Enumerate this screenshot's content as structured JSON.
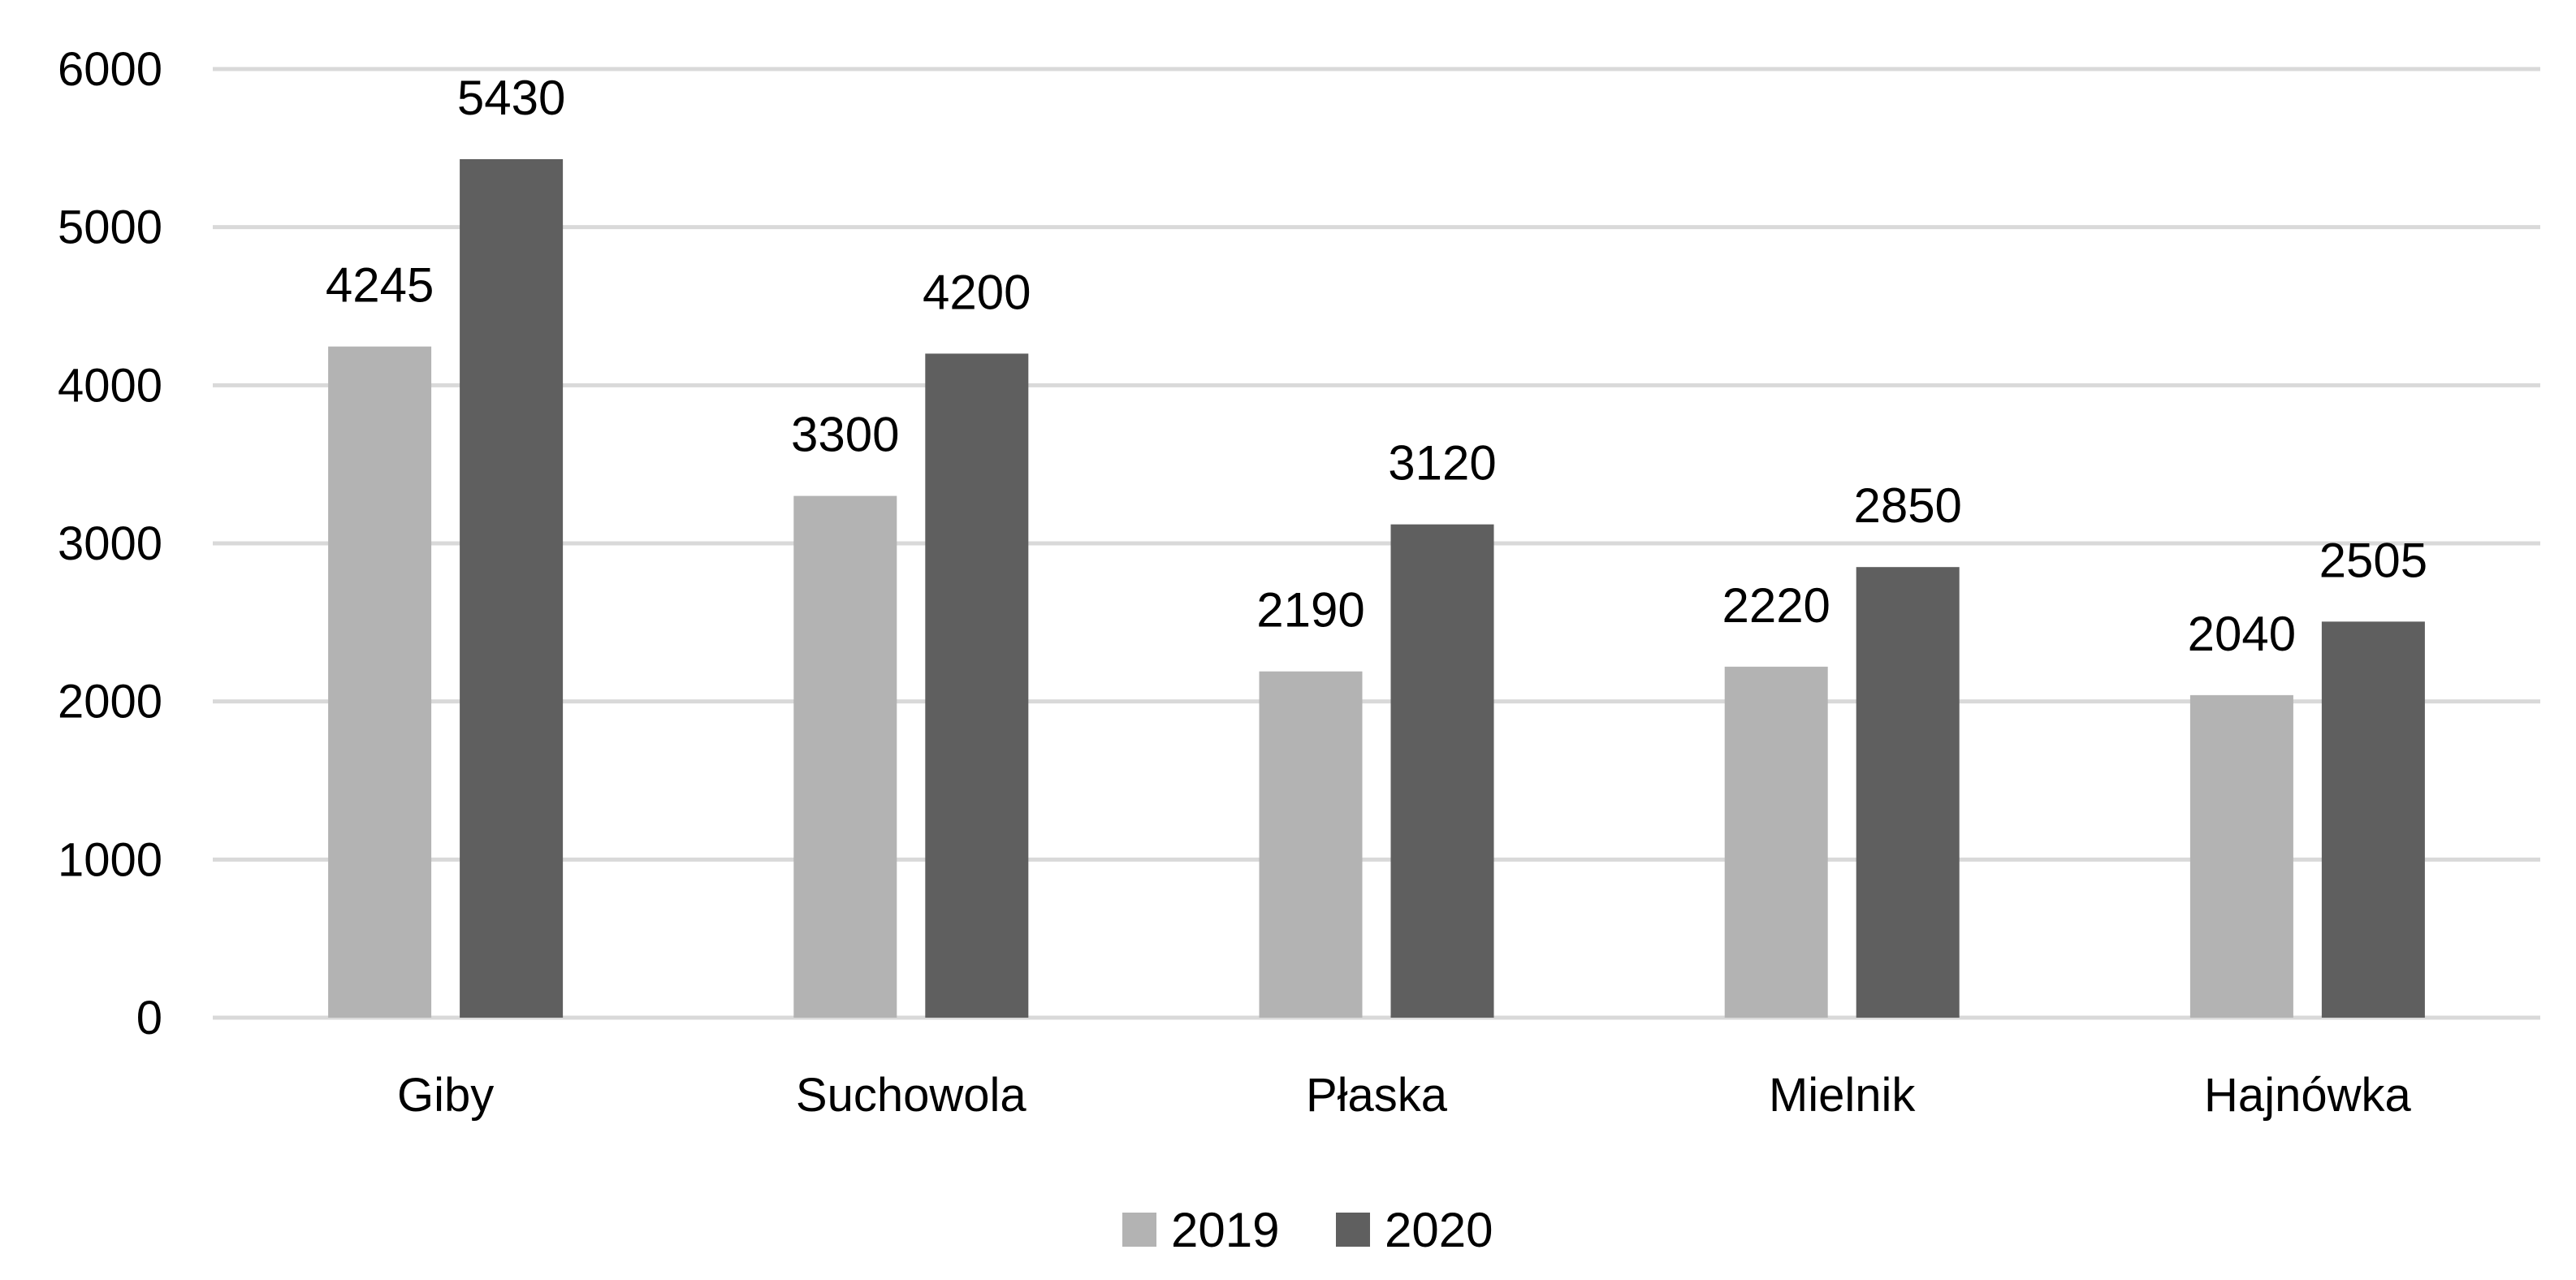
{
  "chart_data": {
    "type": "bar",
    "title": "",
    "xlabel": "",
    "ylabel": "",
    "categories": [
      "Giby",
      "Suchowola",
      "Płaska",
      "Mielnik",
      "Hajnówka"
    ],
    "series": [
      {
        "name": "2019",
        "values": [
          4245,
          3300,
          2190,
          2220,
          2040
        ],
        "color": "#b3b3b3"
      },
      {
        "name": "2020",
        "values": [
          5430,
          4200,
          3120,
          2850,
          2505
        ],
        "color": "#5f5f5f"
      }
    ],
    "ylim": [
      0,
      6000
    ],
    "yticks": [
      0,
      1000,
      2000,
      3000,
      4000,
      5000,
      6000
    ],
    "grid": true,
    "gridline_color": "#d9d9d9",
    "data_labels": true,
    "legend_position": "bottom"
  }
}
